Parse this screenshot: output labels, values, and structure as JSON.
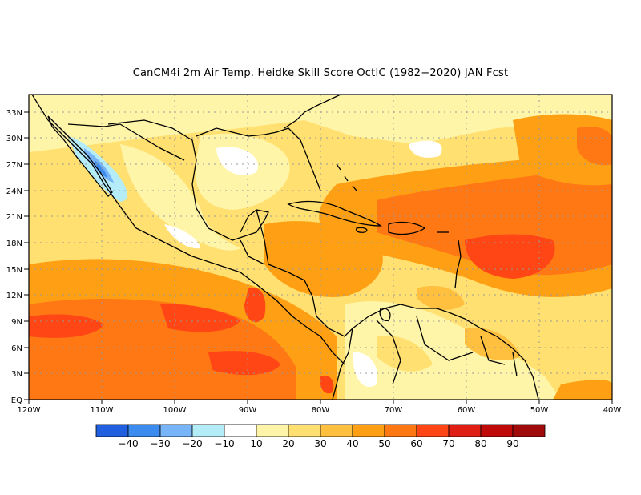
{
  "title": "CanCM4i  2m Air Temp. Heidke Skill Score OctIC (1982−2020) JAN Fcst",
  "map": {
    "lon_range": [
      -120,
      -40
    ],
    "lat_range": [
      0,
      35
    ],
    "x_tick_labels": [
      "120W",
      "110W",
      "100W",
      "90W",
      "80W",
      "70W",
      "60W",
      "50W",
      "40W"
    ],
    "y_tick_labels": [
      "EQ",
      "3N",
      "6N",
      "9N",
      "12N",
      "15N",
      "18N",
      "21N",
      "24N",
      "27N",
      "30N",
      "33N"
    ],
    "gridlines": true,
    "coastline_color": "#000000"
  },
  "colorbar": {
    "colors": [
      "#1f5fe0",
      "#3c8cf0",
      "#78b4f8",
      "#b4ecf8",
      "#ffffff",
      "#fff5a8",
      "#ffe070",
      "#ffc040",
      "#ffa014",
      "#ff7814",
      "#ff4614",
      "#e01e14",
      "#c00a0a",
      "#a00a0a"
    ],
    "labels": [
      "−40",
      "−30",
      "−20",
      "−10",
      "10",
      "20",
      "30",
      "40",
      "50",
      "60",
      "70",
      "80",
      "90"
    ]
  }
}
